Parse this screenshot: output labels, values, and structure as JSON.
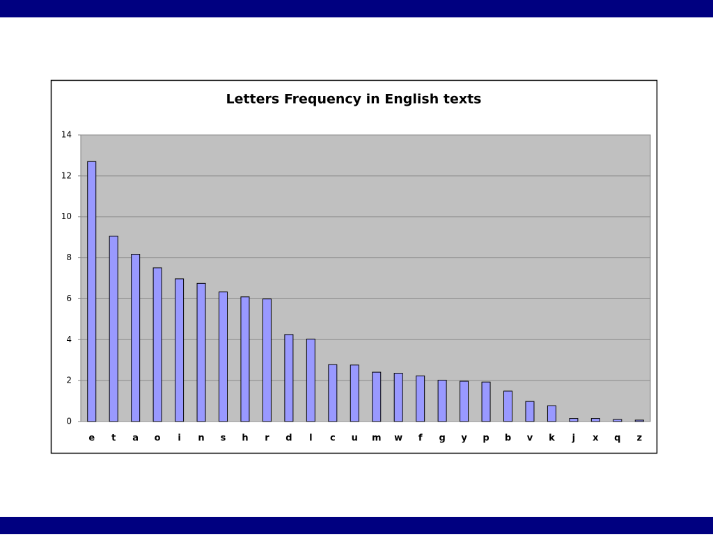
{
  "chart_data": {
    "type": "bar",
    "title": "Letters Frequency in English texts",
    "categories": [
      "e",
      "t",
      "a",
      "o",
      "i",
      "n",
      "s",
      "h",
      "r",
      "d",
      "l",
      "c",
      "u",
      "m",
      "w",
      "f",
      "g",
      "y",
      "p",
      "b",
      "v",
      "k",
      "j",
      "x",
      "q",
      "z"
    ],
    "values": [
      12.7,
      9.06,
      8.17,
      7.51,
      6.97,
      6.75,
      6.33,
      6.09,
      5.99,
      4.25,
      4.03,
      2.78,
      2.76,
      2.41,
      2.36,
      2.23,
      2.02,
      1.97,
      1.93,
      1.49,
      0.98,
      0.77,
      0.15,
      0.15,
      0.1,
      0.07
    ],
    "color": "#9999ff",
    "ylim": [
      0,
      14
    ],
    "yticks": [
      0,
      2,
      4,
      6,
      8,
      10,
      12,
      14
    ],
    "grid": true
  }
}
